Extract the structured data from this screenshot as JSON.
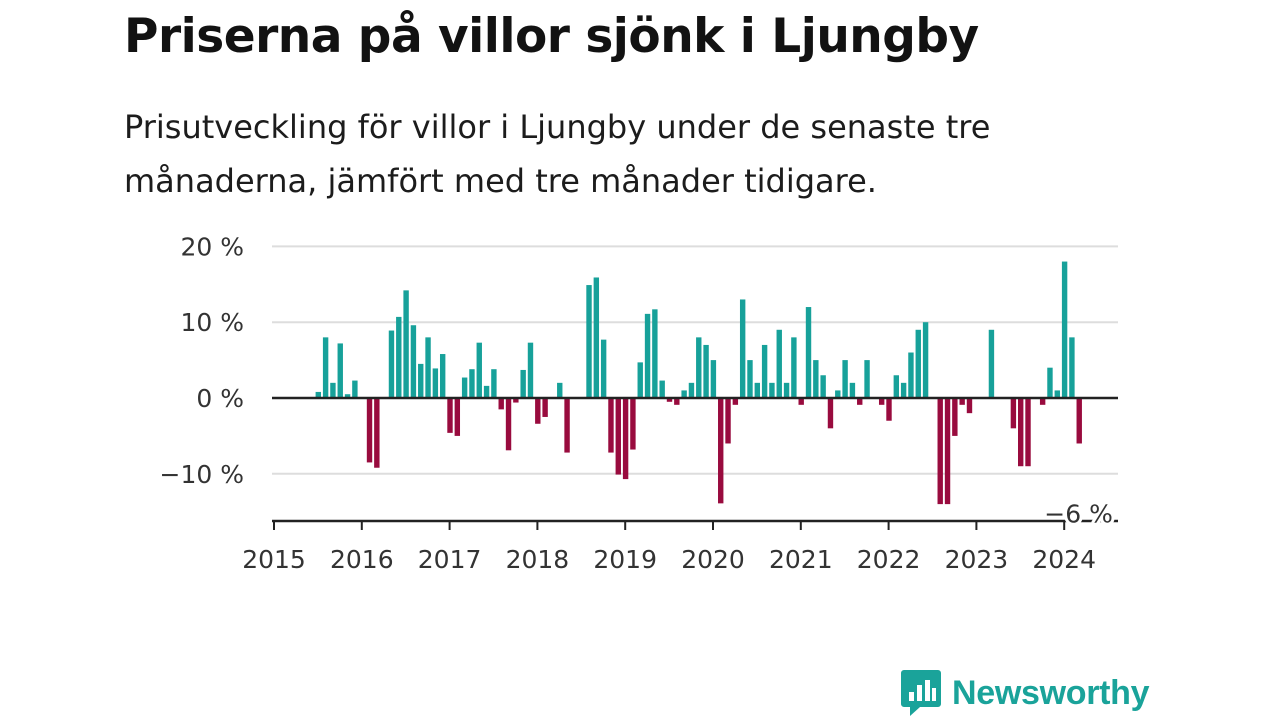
{
  "title": "Priserna på villor sjönk i Ljungby",
  "subtitle": "Prisutveckling för villor i Ljungby under de senaste tre månaderna, jämfört med tre månader tidigare.",
  "brand": {
    "name": "Newsworthy",
    "color": "#1aa39a",
    "icon": "newsworthy-logo-icon"
  },
  "colors": {
    "positive": "#17a19a",
    "negative": "#990b3e",
    "grid": "#dddddd",
    "axis": "#222222"
  },
  "chart_data": {
    "type": "bar",
    "x_axis": {
      "type": "date",
      "tick_labels": [
        "2015",
        "2016",
        "2017",
        "2018",
        "2019",
        "2020",
        "2021",
        "2022",
        "2023",
        "2024"
      ]
    },
    "y_axis": {
      "unit": "%",
      "ticks": [
        20,
        10,
        0,
        -10
      ],
      "tick_labels": [
        "20 %",
        "10 %",
        "0 %",
        "−10 %"
      ],
      "range": [
        -16,
        21
      ]
    },
    "grid": true,
    "annotation": {
      "label": "−6 %",
      "date": "2024-03",
      "value": -6
    },
    "series": [
      {
        "points": [
          {
            "date": "2015-07",
            "value": 0.8
          },
          {
            "date": "2015-08",
            "value": 8
          },
          {
            "date": "2015-09",
            "value": 2
          },
          {
            "date": "2015-10",
            "value": 7.2
          },
          {
            "date": "2015-11",
            "value": 0.5
          },
          {
            "date": "2015-12",
            "value": 2.3
          },
          {
            "date": "2016-01",
            "value": 0
          },
          {
            "date": "2016-02",
            "value": -8.5
          },
          {
            "date": "2016-03",
            "value": -9.2
          },
          {
            "date": "2016-04",
            "value": 0
          },
          {
            "date": "2016-05",
            "value": 8.9
          },
          {
            "date": "2016-06",
            "value": 10.7
          },
          {
            "date": "2016-07",
            "value": 14.2
          },
          {
            "date": "2016-08",
            "value": 9.6
          },
          {
            "date": "2016-09",
            "value": 4.5
          },
          {
            "date": "2016-10",
            "value": 8
          },
          {
            "date": "2016-11",
            "value": 3.9
          },
          {
            "date": "2016-12",
            "value": 5.8
          },
          {
            "date": "2017-01",
            "value": -4.6
          },
          {
            "date": "2017-02",
            "value": -5
          },
          {
            "date": "2017-03",
            "value": 2.7
          },
          {
            "date": "2017-04",
            "value": 3.8
          },
          {
            "date": "2017-05",
            "value": 7.3
          },
          {
            "date": "2017-06",
            "value": 1.6
          },
          {
            "date": "2017-07",
            "value": 3.8
          },
          {
            "date": "2017-08",
            "value": -1.5
          },
          {
            "date": "2017-09",
            "value": -6.9
          },
          {
            "date": "2017-10",
            "value": -0.6
          },
          {
            "date": "2017-11",
            "value": 3.7
          },
          {
            "date": "2017-12",
            "value": 7.3
          },
          {
            "date": "2018-01",
            "value": -3.4
          },
          {
            "date": "2018-02",
            "value": -2.5
          },
          {
            "date": "2018-03",
            "value": 0
          },
          {
            "date": "2018-04",
            "value": 2
          },
          {
            "date": "2018-05",
            "value": -7.2
          },
          {
            "date": "2018-06",
            "value": 0
          },
          {
            "date": "2018-07",
            "value": 0
          },
          {
            "date": "2018-08",
            "value": 14.9
          },
          {
            "date": "2018-09",
            "value": 15.9
          },
          {
            "date": "2018-10",
            "value": 7.7
          },
          {
            "date": "2018-11",
            "value": -7.2
          },
          {
            "date": "2018-12",
            "value": -10.1
          },
          {
            "date": "2019-01",
            "value": -10.7
          },
          {
            "date": "2019-02",
            "value": -6.8
          },
          {
            "date": "2019-03",
            "value": 4.7
          },
          {
            "date": "2019-04",
            "value": 11.1
          },
          {
            "date": "2019-05",
            "value": 11.7
          },
          {
            "date": "2019-06",
            "value": 2.3
          },
          {
            "date": "2019-07",
            "value": -0.5
          },
          {
            "date": "2019-08",
            "value": -0.9
          },
          {
            "date": "2019-09",
            "value": 1
          },
          {
            "date": "2019-10",
            "value": 2
          },
          {
            "date": "2019-11",
            "value": 8
          },
          {
            "date": "2019-12",
            "value": 7
          },
          {
            "date": "2020-01",
            "value": 5
          },
          {
            "date": "2020-02",
            "value": -13.9
          },
          {
            "date": "2020-03",
            "value": -6
          },
          {
            "date": "2020-04",
            "value": -0.9
          },
          {
            "date": "2020-05",
            "value": 13
          },
          {
            "date": "2020-06",
            "value": 5
          },
          {
            "date": "2020-07",
            "value": 2
          },
          {
            "date": "2020-08",
            "value": 7
          },
          {
            "date": "2020-09",
            "value": 2
          },
          {
            "date": "2020-10",
            "value": 9
          },
          {
            "date": "2020-11",
            "value": 2
          },
          {
            "date": "2020-12",
            "value": 8
          },
          {
            "date": "2021-01",
            "value": -0.9
          },
          {
            "date": "2021-02",
            "value": 12
          },
          {
            "date": "2021-03",
            "value": 5
          },
          {
            "date": "2021-04",
            "value": 3
          },
          {
            "date": "2021-05",
            "value": -4
          },
          {
            "date": "2021-06",
            "value": 1
          },
          {
            "date": "2021-07",
            "value": 5
          },
          {
            "date": "2021-08",
            "value": 2
          },
          {
            "date": "2021-09",
            "value": -0.9
          },
          {
            "date": "2021-10",
            "value": 5
          },
          {
            "date": "2021-11",
            "value": 0
          },
          {
            "date": "2021-12",
            "value": -0.9
          },
          {
            "date": "2022-01",
            "value": -3
          },
          {
            "date": "2022-02",
            "value": 3
          },
          {
            "date": "2022-03",
            "value": 2
          },
          {
            "date": "2022-04",
            "value": 6
          },
          {
            "date": "2022-05",
            "value": 9
          },
          {
            "date": "2022-06",
            "value": 10
          },
          {
            "date": "2022-07",
            "value": 0
          },
          {
            "date": "2022-08",
            "value": -14
          },
          {
            "date": "2022-09",
            "value": -14
          },
          {
            "date": "2022-10",
            "value": -5
          },
          {
            "date": "2022-11",
            "value": -0.9
          },
          {
            "date": "2022-12",
            "value": -2
          },
          {
            "date": "2023-01",
            "value": 0
          },
          {
            "date": "2023-02",
            "value": 0
          },
          {
            "date": "2023-03",
            "value": 9
          },
          {
            "date": "2023-04",
            "value": 0
          },
          {
            "date": "2023-05",
            "value": 0
          },
          {
            "date": "2023-06",
            "value": -4
          },
          {
            "date": "2023-07",
            "value": -9
          },
          {
            "date": "2023-08",
            "value": -9
          },
          {
            "date": "2023-09",
            "value": 0
          },
          {
            "date": "2023-10",
            "value": -0.9
          },
          {
            "date": "2023-11",
            "value": 4
          },
          {
            "date": "2023-12",
            "value": 1
          },
          {
            "date": "2024-01",
            "value": 18
          },
          {
            "date": "2024-02",
            "value": 8
          },
          {
            "date": "2024-03",
            "value": -6
          }
        ]
      }
    ]
  }
}
